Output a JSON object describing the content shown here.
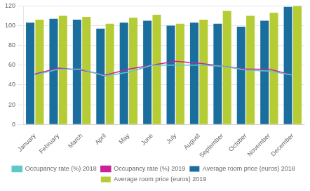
{
  "chart_data": {
    "type": "bar",
    "categories": [
      "January",
      "February",
      "March",
      "April",
      "May",
      "June",
      "July",
      "August",
      "September",
      "October",
      "November",
      "December"
    ],
    "series": [
      {
        "name": "Average room price (euros) 2018",
        "type": "bar",
        "color": "#1a6e9e",
        "values": [
          103,
          107,
          106,
          97,
          103,
          105,
          100,
          103,
          102,
          99,
          105,
          119
        ]
      },
      {
        "name": "Average room price (euros) 2019",
        "type": "bar",
        "color": "#b5cc35",
        "values": [
          106,
          110,
          109,
          102,
          108,
          111,
          102,
          106,
          115,
          110,
          113,
          120
        ]
      },
      {
        "name": "Occupancy rate (%) 2018",
        "type": "line",
        "color": "#5ec8c8",
        "values": [
          50,
          56,
          56,
          49,
          53,
          60,
          60,
          60,
          59,
          55,
          54,
          50
        ]
      },
      {
        "name": "Occupancy rate (%) 2019",
        "type": "line",
        "color": "#cc2299",
        "values": [
          51,
          57,
          55,
          50,
          56,
          60,
          64,
          62,
          59,
          56,
          56,
          50
        ]
      }
    ],
    "ylim": [
      0,
      120
    ],
    "yticks": [
      0,
      20,
      40,
      60,
      80,
      100,
      120
    ],
    "grid": true,
    "legend": "bottom"
  }
}
